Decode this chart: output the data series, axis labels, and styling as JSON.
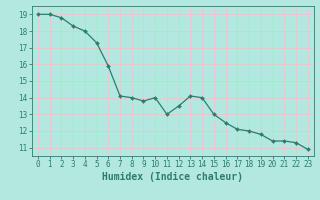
{
  "x": [
    0,
    1,
    2,
    3,
    4,
    5,
    6,
    7,
    8,
    9,
    10,
    11,
    12,
    13,
    14,
    15,
    16,
    17,
    18,
    19,
    20,
    21,
    22,
    23
  ],
  "y": [
    19.0,
    19.0,
    18.8,
    18.3,
    18.0,
    17.3,
    15.9,
    14.1,
    14.0,
    13.8,
    14.0,
    13.0,
    13.5,
    14.1,
    14.0,
    13.0,
    12.5,
    12.1,
    12.0,
    11.8,
    11.4,
    11.4,
    11.3,
    10.9
  ],
  "line_color": "#2d7d6e",
  "marker": "D",
  "marker_size": 2.0,
  "bg_color": "#b2e8e0",
  "grid_color": "#d0f0ea",
  "axis_color": "#2d7d6e",
  "xlabel": "Humidex (Indice chaleur)",
  "xlim": [
    -0.5,
    23.5
  ],
  "ylim": [
    10.5,
    19.5
  ],
  "yticks": [
    11,
    12,
    13,
    14,
    15,
    16,
    17,
    18,
    19
  ],
  "xticks": [
    0,
    1,
    2,
    3,
    4,
    5,
    6,
    7,
    8,
    9,
    10,
    11,
    12,
    13,
    14,
    15,
    16,
    17,
    18,
    19,
    20,
    21,
    22,
    23
  ],
  "tick_fontsize": 5.5,
  "label_fontsize": 7.0
}
